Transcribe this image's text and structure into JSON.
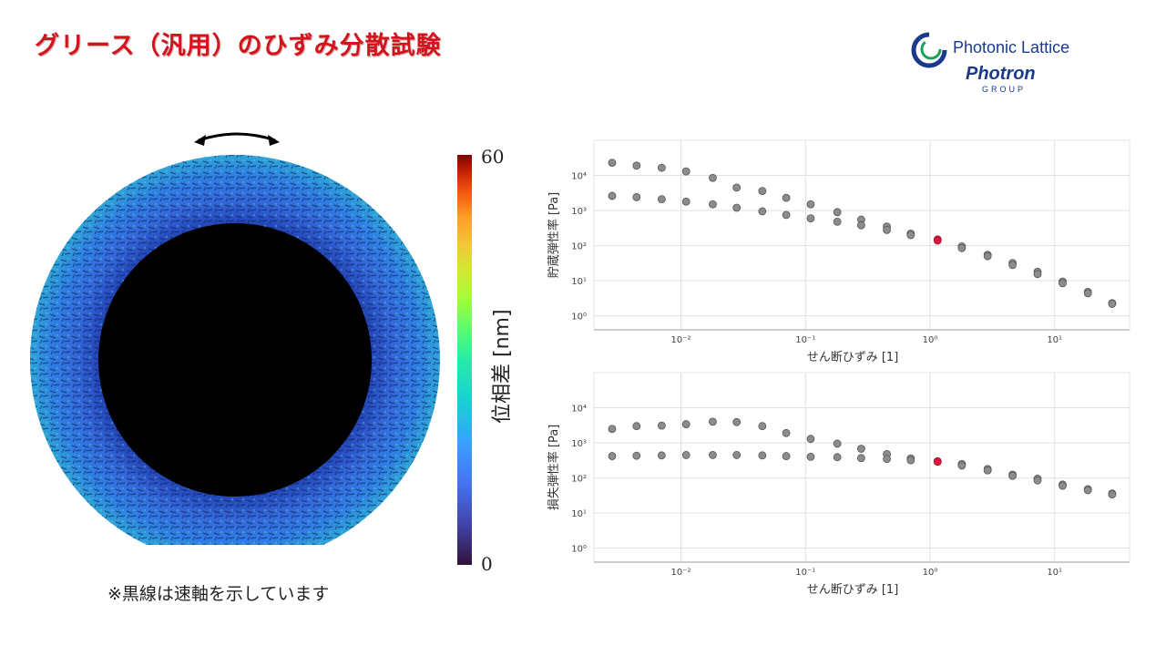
{
  "header": {
    "title": "グリース（汎用）のひずみ分散試験",
    "logo_text": "Photonic Lattice",
    "logo_sub1": "Photron",
    "logo_sub2": "GROUP"
  },
  "image_panel": {
    "note": "※黒線は速軸を示しています",
    "colorbar": {
      "max_label": "60",
      "min_label": "0",
      "label": "位相差 [nm]"
    }
  },
  "colors": {
    "title": "#d4141c",
    "point": "#8c8c8c",
    "highlight": "#e0143c",
    "logo": "#1c3a8c"
  },
  "chart_data": [
    {
      "type": "scatter",
      "xlabel": "せん断ひずみ [1]",
      "ylabel": "貯蔵弾性率 [Pa]",
      "x_scale": "log",
      "y_scale": "log",
      "xlim": [
        0.002,
        40
      ],
      "ylim": [
        0.4,
        100000
      ],
      "x_ticks": [
        {
          "v": 0.01,
          "label": "10⁻²"
        },
        {
          "v": 0.1,
          "label": "10⁻¹"
        },
        {
          "v": 1,
          "label": "10⁰"
        },
        {
          "v": 10,
          "label": "10¹"
        }
      ],
      "y_ticks": [
        {
          "v": 1,
          "label": "10⁰"
        },
        {
          "v": 10,
          "label": "10¹"
        },
        {
          "v": 100,
          "label": "10²"
        },
        {
          "v": 1000,
          "label": "10³"
        },
        {
          "v": 10000,
          "label": "10⁴"
        }
      ],
      "grid": true,
      "series": [
        {
          "x": [
            0.0028,
            0.0044,
            0.007,
            0.011,
            0.018,
            0.028,
            0.045,
            0.07,
            0.11,
            0.18,
            0.28,
            0.45,
            0.7,
            1.15,
            1.8,
            2.9,
            4.6,
            7.3,
            11.6,
            18.5,
            29
          ],
          "y": [
            23000,
            19000,
            16500,
            13000,
            8500,
            4500,
            3600,
            2300,
            1500,
            900,
            550,
            350,
            220,
            150,
            95,
            55,
            32,
            18,
            9.5,
            4.8,
            2.3
          ],
          "y2": [
            2600,
            2400,
            2100,
            1800,
            1500,
            1200,
            950,
            750,
            600,
            480,
            380,
            280,
            200,
            140,
            85,
            50,
            28,
            15.5,
            8.5,
            4.4,
            2.2
          ],
          "highlight_index": 13
        }
      ]
    },
    {
      "type": "scatter",
      "xlabel": "せん断ひずみ [1]",
      "ylabel": "損失弾性率 [Pa]",
      "x_scale": "log",
      "y_scale": "log",
      "xlim": [
        0.002,
        40
      ],
      "ylim": [
        0.4,
        100000
      ],
      "x_ticks": [
        {
          "v": 0.01,
          "label": "10⁻²"
        },
        {
          "v": 0.1,
          "label": "10⁻¹"
        },
        {
          "v": 1,
          "label": "10⁰"
        },
        {
          "v": 10,
          "label": "10¹"
        }
      ],
      "y_ticks": [
        {
          "v": 1,
          "label": "10⁰"
        },
        {
          "v": 10,
          "label": "10¹"
        },
        {
          "v": 100,
          "label": "10²"
        },
        {
          "v": 1000,
          "label": "10³"
        },
        {
          "v": 10000,
          "label": "10⁴"
        }
      ],
      "grid": true,
      "series": [
        {
          "x": [
            0.0028,
            0.0044,
            0.007,
            0.011,
            0.018,
            0.028,
            0.045,
            0.07,
            0.11,
            0.18,
            0.28,
            0.45,
            0.7,
            1.15,
            1.8,
            2.9,
            4.6,
            7.3,
            11.6,
            18.5,
            29
          ],
          "y": [
            2500,
            3000,
            3100,
            3400,
            4000,
            3900,
            3000,
            1900,
            1300,
            950,
            680,
            480,
            360,
            300,
            250,
            180,
            125,
            95,
            65,
            48,
            36
          ],
          "y2": [
            420,
            430,
            440,
            450,
            450,
            450,
            440,
            420,
            400,
            390,
            370,
            350,
            320,
            290,
            225,
            165,
            115,
            85,
            60,
            45,
            34
          ],
          "highlight_index": 13
        }
      ]
    }
  ]
}
